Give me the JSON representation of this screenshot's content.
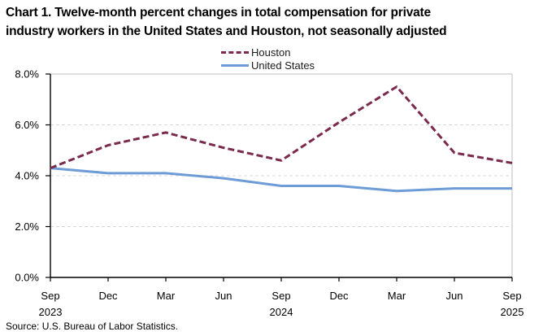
{
  "header": {
    "title_line1": "Chart 1. Twelve-month percent changes in total compensation for private",
    "title_line2": "industry workers in the United States and Houston, not seasonally adjusted"
  },
  "legend": [
    {
      "label": "Houston",
      "style": "dashed",
      "color_key": "houston"
    },
    {
      "label": "United States",
      "style": "solid",
      "color_key": "united_states"
    }
  ],
  "source_note": "Source: U.S. Bureau of Labor Statistics.",
  "colors": {
    "houston": "#7A2B4D",
    "united_states": "#6D9CD6",
    "gridline": "#D9D9D9",
    "axis": "#000000",
    "plot_border": "#BFBFBF",
    "text": "#000000"
  },
  "chart_data": {
    "type": "line",
    "title": "Chart 1. Twelve-month percent changes in total compensation for private industry workers in the United States and Houston, not seasonally adjusted",
    "categories": [
      "Sep",
      "Dec",
      "Mar",
      "Jun",
      "Sep",
      "Dec",
      "Mar",
      "Jun",
      "Sep"
    ],
    "category_years": [
      "2023",
      "",
      "",
      "",
      "2024",
      "",
      "",
      "",
      "2025"
    ],
    "series": [
      {
        "name": "Houston",
        "color_key": "houston",
        "line": "dashed",
        "values": [
          4.3,
          5.2,
          5.7,
          5.1,
          4.6,
          6.1,
          7.5,
          4.9,
          4.5
        ]
      },
      {
        "name": "United States",
        "color_key": "united_states",
        "line": "solid",
        "values": [
          4.3,
          4.1,
          4.1,
          3.9,
          3.6,
          3.6,
          3.4,
          3.5,
          3.5
        ]
      }
    ],
    "xlabel": "",
    "ylabel": "",
    "ylim": [
      0,
      8
    ],
    "y_tick_step": 2,
    "y_tick_labels": [
      "0.0%",
      "2.0%",
      "4.0%",
      "6.0%",
      "8.0%"
    ],
    "grid": true,
    "legend_position": "top-center"
  }
}
